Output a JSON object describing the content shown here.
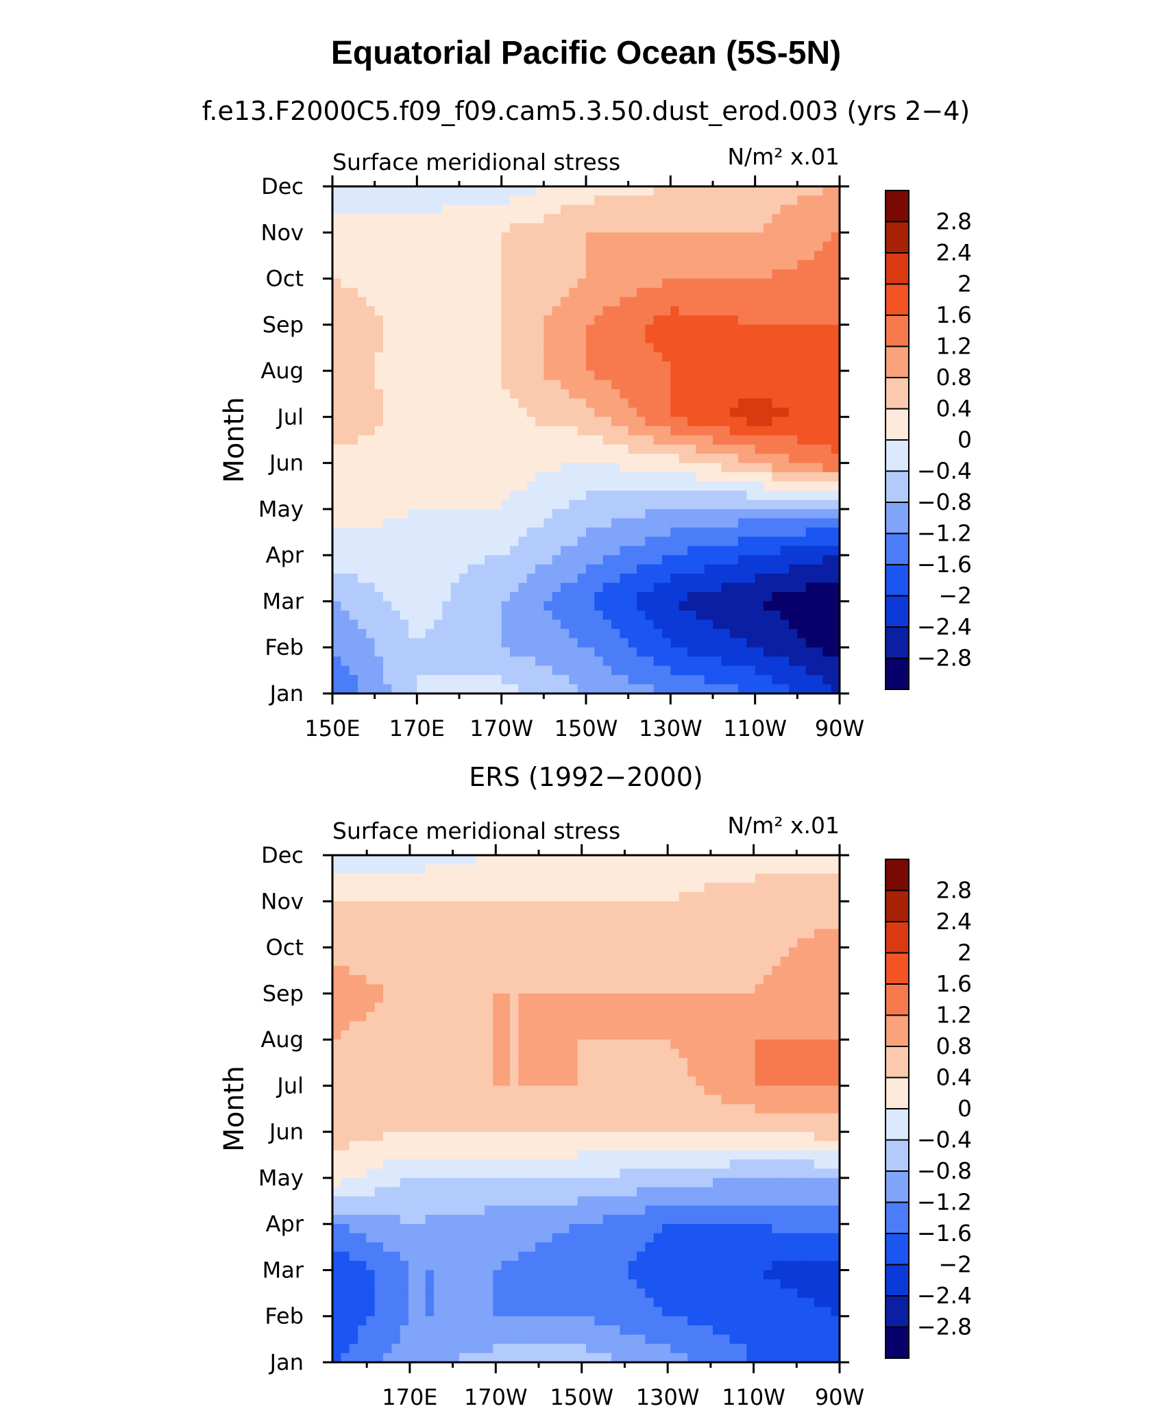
{
  "title": "Equatorial Pacific Ocean (5S-5N)",
  "subtitle": "f.e13.F2000C5.f09_f09.cam5.3.50.dust_erod.003 (yrs 2−4)",
  "chart_data": [
    {
      "type": "heatmap",
      "title": "f.e13.F2000C5.f09_f09.cam5.3.50.dust_erod.003 (yrs 2−4)",
      "variable_label": "Surface meridional stress",
      "units_label": "N/m² x.01",
      "xlabel": "",
      "ylabel": "Month",
      "x_tick_labels": [
        "150E",
        "170E",
        "170W",
        "150W",
        "130W",
        "110W",
        "90W"
      ],
      "x_tick_longitudes": [
        150,
        170,
        190,
        210,
        230,
        250,
        270
      ],
      "y_tick_labels": [
        "Jan",
        "Feb",
        "Mar",
        "Apr",
        "May",
        "Jun",
        "Jul",
        "Aug",
        "Sep",
        "Oct",
        "Nov",
        "Dec"
      ],
      "xlim": [
        150,
        270
      ],
      "ylim": [
        0,
        11
      ],
      "colorbar_labels": [
        "2.8",
        "2.4",
        "2",
        "1.6",
        "1.2",
        "0.8",
        "0.4",
        "0",
        "−0.4",
        "−0.8",
        "−1.2",
        "−1.6",
        "−2",
        "−2.4",
        "−2.8"
      ],
      "grid_x": [
        150,
        170,
        190,
        210,
        230,
        250,
        270
      ],
      "grid_y": [
        "Jan",
        "Feb",
        "Mar",
        "Apr",
        "May",
        "Jun",
        "Jul",
        "Aug",
        "Sep",
        "Oct",
        "Nov",
        "Dec"
      ],
      "values": [
        [
          -1.6,
          -0.4,
          -0.2,
          -0.8,
          -1.2,
          -1.6,
          -2.4
        ],
        [
          -1.2,
          -0.4,
          -0.8,
          -1.2,
          -2.0,
          -2.4,
          -3.0
        ],
        [
          -0.8,
          -0.2,
          -0.8,
          -1.6,
          -2.4,
          -2.8,
          -3.2
        ],
        [
          -0.2,
          -0.2,
          -0.4,
          -1.0,
          -1.6,
          -2.0,
          -2.4
        ],
        [
          0.2,
          0.0,
          0.0,
          -0.6,
          -0.8,
          -0.9,
          -1.0
        ],
        [
          0.3,
          0.3,
          0.2,
          0.0,
          0.2,
          0.8,
          1.6
        ],
        [
          0.6,
          0.3,
          0.3,
          0.6,
          1.6,
          2.2,
          1.8
        ],
        [
          0.6,
          0.2,
          0.4,
          1.2,
          1.6,
          1.8,
          1.6
        ],
        [
          0.7,
          0.2,
          0.4,
          1.2,
          1.8,
          1.6,
          1.6
        ],
        [
          0.4,
          0.2,
          0.4,
          0.8,
          1.2,
          1.2,
          1.4
        ],
        [
          0.2,
          0.1,
          0.4,
          0.8,
          0.8,
          0.8,
          1.2
        ],
        [
          -0.2,
          -0.2,
          -0.2,
          0.2,
          0.4,
          0.6,
          0.8
        ]
      ]
    },
    {
      "type": "heatmap",
      "title": "ERS (1992−2000)",
      "variable_label": "Surface meridional stress",
      "units_label": "N/m² x.01",
      "xlabel": "",
      "ylabel": "Month",
      "x_tick_labels": [
        "170E",
        "170W",
        "150W",
        "130W",
        "110W",
        "90W"
      ],
      "x_tick_longitudes": [
        170,
        190,
        210,
        230,
        250,
        270
      ],
      "y_tick_labels": [
        "Jan",
        "Feb",
        "Mar",
        "Apr",
        "May",
        "Jun",
        "Jul",
        "Aug",
        "Sep",
        "Oct",
        "Nov",
        "Dec"
      ],
      "xlim": [
        152,
        270
      ],
      "ylim": [
        0,
        11
      ],
      "colorbar_labels": [
        "2.8",
        "2.4",
        "2",
        "1.6",
        "1.2",
        "0.8",
        "0.4",
        "0",
        "−0.4",
        "−0.8",
        "−1.2",
        "−1.6",
        "−2",
        "−2.4",
        "−2.8"
      ],
      "grid_x": [
        152,
        170,
        190,
        210,
        230,
        250,
        270
      ],
      "grid_y": [
        "Jan",
        "Feb",
        "Mar",
        "Apr",
        "May",
        "Jun",
        "Jul",
        "Aug",
        "Sep",
        "Oct",
        "Nov",
        "Dec"
      ],
      "values": [
        [
          -1.6,
          -1.0,
          -0.6,
          -0.6,
          -1.0,
          -1.6,
          -2.0
        ],
        [
          -2.0,
          -1.2,
          -1.2,
          -1.2,
          -1.6,
          -1.8,
          -2.0
        ],
        [
          -2.0,
          -1.2,
          -1.2,
          -1.4,
          -1.8,
          -2.0,
          -2.2
        ],
        [
          -1.2,
          -0.8,
          -1.0,
          -1.2,
          -1.6,
          -1.6,
          -1.4
        ],
        [
          0.2,
          -0.4,
          -0.4,
          -0.4,
          -0.6,
          -0.8,
          -0.8
        ],
        [
          0.6,
          0.4,
          0.4,
          0.4,
          0.4,
          0.4,
          0.6
        ],
        [
          0.8,
          0.4,
          0.8,
          0.8,
          0.6,
          1.2,
          1.2
        ],
        [
          0.8,
          0.4,
          0.8,
          0.8,
          0.8,
          1.2,
          1.2
        ],
        [
          1.2,
          0.6,
          0.8,
          0.8,
          0.8,
          0.8,
          1.2
        ],
        [
          0.6,
          0.4,
          0.6,
          0.6,
          0.6,
          0.6,
          1.0
        ],
        [
          0.4,
          0.4,
          0.4,
          0.4,
          0.4,
          0.6,
          0.6
        ],
        [
          -0.2,
          -0.2,
          0.0,
          0.2,
          0.2,
          0.2,
          0.2
        ]
      ]
    }
  ],
  "colors": {
    "levels": [
      "#08006b",
      "#0a1fa3",
      "#0b3ad8",
      "#1b55f2",
      "#4a7df7",
      "#7fa4fa",
      "#b3cbfc",
      "#dce9fd",
      "#fdeadb",
      "#fbc9ad",
      "#f9a27c",
      "#f77a4e",
      "#f35424",
      "#d93a10",
      "#a82208",
      "#7a0a03"
    ],
    "thresholds": [
      -2.8,
      -2.4,
      -2.0,
      -1.6,
      -1.2,
      -0.8,
      -0.4,
      0.0,
      0.4,
      0.8,
      1.2,
      1.6,
      2.0,
      2.4,
      2.8
    ]
  }
}
